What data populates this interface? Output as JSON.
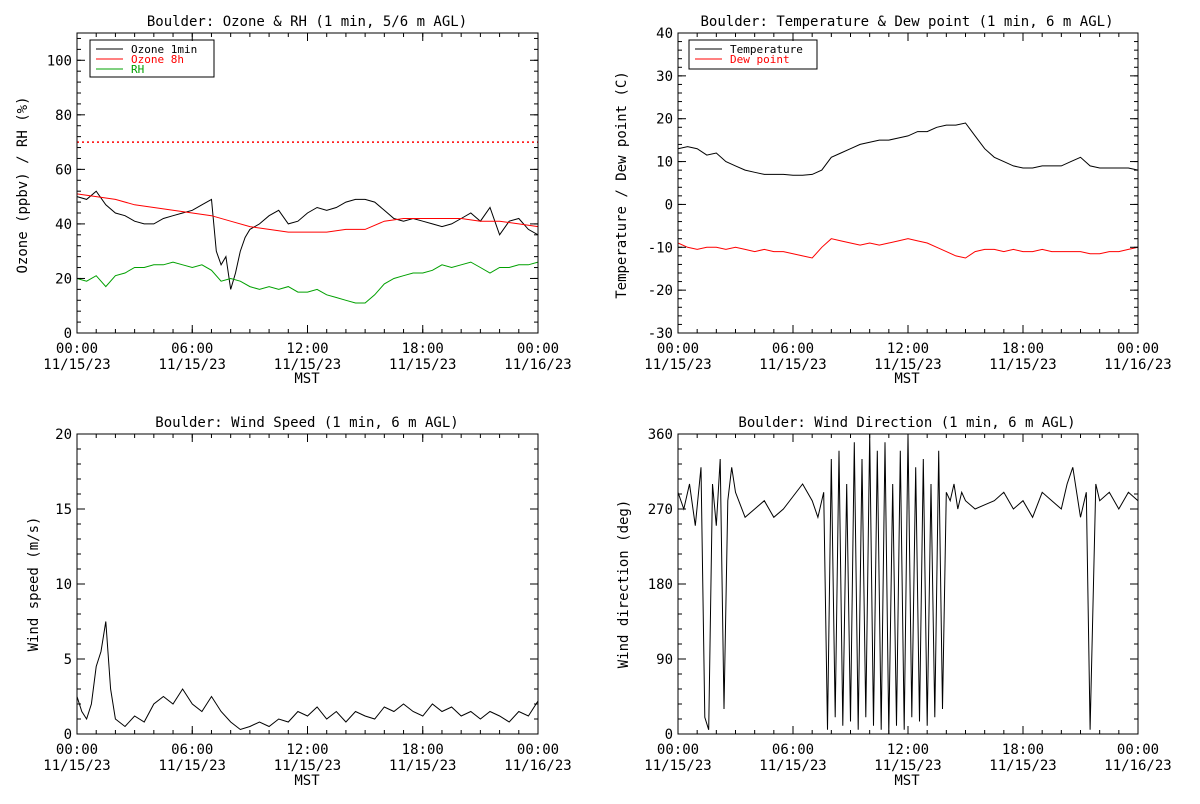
{
  "chart_data": [
    {
      "type": "line",
      "title": "Boulder: Ozone & RH (1 min, 5/6 m AGL)",
      "xlabel": "MST",
      "ylabel": "Ozone (ppbv) / RH (%)",
      "xticks": [
        {
          "hour": 0,
          "line1": "00:00",
          "line2": "11/15/23"
        },
        {
          "hour": 6,
          "line1": "06:00",
          "line2": "11/15/23"
        },
        {
          "hour": 12,
          "line1": "12:00",
          "line2": "11/15/23"
        },
        {
          "hour": 18,
          "line1": "18:00",
          "line2": "11/15/23"
        },
        {
          "hour": 24,
          "line1": "00:00",
          "line2": "11/16/23"
        }
      ],
      "ylim": [
        0,
        110
      ],
      "yticks": [
        0,
        20,
        40,
        60,
        80,
        100
      ],
      "reference_line": {
        "y": 70,
        "color": "#ff0000",
        "style": "dotted"
      },
      "legend_position": "top-left",
      "series": [
        {
          "name": "Ozone 1min",
          "color": "#000000",
          "x": [
            0,
            0.5,
            1,
            1.5,
            2,
            2.5,
            3,
            3.5,
            4,
            4.5,
            5,
            5.5,
            6,
            6.5,
            7,
            7.25,
            7.5,
            7.75,
            8,
            8.25,
            8.5,
            8.75,
            9,
            9.5,
            10,
            10.5,
            11,
            11.5,
            12,
            12.5,
            13,
            13.5,
            14,
            14.5,
            15,
            15.5,
            16,
            16.5,
            17,
            17.5,
            18,
            18.5,
            19,
            19.5,
            20,
            20.5,
            21,
            21.5,
            22,
            22.5,
            23,
            23.5,
            24
          ],
          "y": [
            50,
            49,
            52,
            47,
            44,
            43,
            41,
            40,
            40,
            42,
            43,
            44,
            45,
            47,
            49,
            30,
            25,
            28,
            16,
            22,
            30,
            35,
            38,
            40,
            43,
            45,
            40,
            41,
            44,
            46,
            45,
            46,
            48,
            49,
            49,
            48,
            45,
            42,
            41,
            42,
            41,
            40,
            39,
            40,
            42,
            44,
            41,
            46,
            36,
            41,
            42,
            38,
            36
          ]
        },
        {
          "name": "Ozone 8h",
          "color": "#ff0000",
          "x": [
            0,
            1,
            2,
            3,
            4,
            5,
            6,
            7,
            8,
            9,
            10,
            11,
            12,
            13,
            14,
            15,
            16,
            17,
            18,
            19,
            20,
            21,
            22,
            23,
            24
          ],
          "y": [
            51,
            50,
            49,
            47,
            46,
            45,
            44,
            43,
            41,
            39,
            38,
            37,
            37,
            37,
            38,
            38,
            41,
            42,
            42,
            42,
            42,
            41,
            41,
            40,
            39
          ]
        },
        {
          "name": "RH",
          "color": "#00a000",
          "x": [
            0,
            0.5,
            1,
            1.5,
            2,
            2.5,
            3,
            3.5,
            4,
            4.5,
            5,
            5.5,
            6,
            6.5,
            7,
            7.5,
            8,
            8.5,
            9,
            9.5,
            10,
            10.5,
            11,
            11.5,
            12,
            12.5,
            13,
            13.5,
            14,
            14.5,
            15,
            15.5,
            16,
            16.5,
            17,
            17.5,
            18,
            18.5,
            19,
            19.5,
            20,
            20.5,
            21,
            21.5,
            22,
            22.5,
            23,
            23.5,
            24
          ],
          "y": [
            20,
            19,
            21,
            17,
            21,
            22,
            24,
            24,
            25,
            25,
            26,
            25,
            24,
            25,
            23,
            19,
            20,
            19,
            17,
            16,
            17,
            16,
            17,
            15,
            15,
            16,
            14,
            13,
            12,
            11,
            11,
            14,
            18,
            20,
            21,
            22,
            22,
            23,
            25,
            24,
            25,
            26,
            24,
            22,
            24,
            24,
            25,
            25,
            26
          ]
        }
      ]
    },
    {
      "type": "line",
      "title": "Boulder: Temperature & Dew point (1 min, 6 m AGL)",
      "xlabel": "MST",
      "ylabel": "Temperature / Dew point (C)",
      "xticks": [
        {
          "hour": 0,
          "line1": "00:00",
          "line2": "11/15/23"
        },
        {
          "hour": 6,
          "line1": "06:00",
          "line2": "11/15/23"
        },
        {
          "hour": 12,
          "line1": "12:00",
          "line2": "11/15/23"
        },
        {
          "hour": 18,
          "line1": "18:00",
          "line2": "11/15/23"
        },
        {
          "hour": 24,
          "line1": "00:00",
          "line2": "11/16/23"
        }
      ],
      "ylim": [
        -30,
        40
      ],
      "yticks": [
        -30,
        -20,
        -10,
        0,
        10,
        20,
        30,
        40
      ],
      "legend_position": "top-left",
      "series": [
        {
          "name": "Temperature",
          "color": "#000000",
          "x": [
            0,
            0.5,
            1,
            1.5,
            2,
            2.5,
            3,
            3.5,
            4,
            4.5,
            5,
            5.5,
            6,
            6.5,
            7,
            7.5,
            8,
            8.5,
            9,
            9.5,
            10,
            10.5,
            11,
            11.5,
            12,
            12.5,
            13,
            13.5,
            14,
            14.5,
            15,
            15.5,
            16,
            16.5,
            17,
            17.5,
            18,
            18.5,
            19,
            19.5,
            20,
            20.5,
            21,
            21.5,
            22,
            22.5,
            23,
            23.5,
            24
          ],
          "y": [
            13,
            13.5,
            13,
            11.5,
            12,
            10,
            9,
            8,
            7.5,
            7,
            7,
            7,
            6.8,
            6.8,
            7,
            8,
            11,
            12,
            13,
            14,
            14.5,
            15,
            15,
            15.5,
            16,
            17,
            17,
            18,
            18.5,
            18.5,
            19,
            16,
            13,
            11,
            10,
            9,
            8.5,
            8.5,
            9,
            9,
            9,
            10,
            11,
            9,
            8.5,
            8.5,
            8.5,
            8.5,
            8
          ]
        },
        {
          "name": "Dew point",
          "color": "#ff0000",
          "x": [
            0,
            0.5,
            1,
            1.5,
            2,
            2.5,
            3,
            3.5,
            4,
            4.5,
            5,
            5.5,
            6,
            6.5,
            7,
            7.5,
            8,
            8.5,
            9,
            9.5,
            10,
            10.5,
            11,
            11.5,
            12,
            12.5,
            13,
            13.5,
            14,
            14.5,
            15,
            15.5,
            16,
            16.5,
            17,
            17.5,
            18,
            18.5,
            19,
            19.5,
            20,
            20.5,
            21,
            21.5,
            22,
            22.5,
            23,
            23.5,
            24
          ],
          "y": [
            -9,
            -10,
            -10.5,
            -10,
            -10,
            -10.5,
            -10,
            -10.5,
            -11,
            -10.5,
            -11,
            -11,
            -11.5,
            -12,
            -12.5,
            -10,
            -8,
            -8.5,
            -9,
            -9.5,
            -9,
            -9.5,
            -9,
            -8.5,
            -8,
            -8.5,
            -9,
            -10,
            -11,
            -12,
            -12.5,
            -11,
            -10.5,
            -10.5,
            -11,
            -10.5,
            -11,
            -11,
            -10.5,
            -11,
            -11,
            -11,
            -11,
            -11.5,
            -11.5,
            -11,
            -11,
            -10.5,
            -10
          ]
        }
      ]
    },
    {
      "type": "line",
      "title": "Boulder: Wind Speed (1 min, 6 m AGL)",
      "xlabel": "MST",
      "ylabel": "Wind speed (m/s)",
      "xticks": [
        {
          "hour": 0,
          "line1": "00:00",
          "line2": "11/15/23"
        },
        {
          "hour": 6,
          "line1": "06:00",
          "line2": "11/15/23"
        },
        {
          "hour": 12,
          "line1": "12:00",
          "line2": "11/15/23"
        },
        {
          "hour": 18,
          "line1": "18:00",
          "line2": "11/15/23"
        },
        {
          "hour": 24,
          "line1": "00:00",
          "line2": "11/16/23"
        }
      ],
      "ylim": [
        0,
        20
      ],
      "yticks": [
        0,
        5,
        10,
        15,
        20
      ],
      "series": [
        {
          "name": "",
          "color": "#000000",
          "x": [
            0,
            0.25,
            0.5,
            0.75,
            1,
            1.25,
            1.5,
            1.75,
            2,
            2.5,
            3,
            3.5,
            4,
            4.5,
            5,
            5.5,
            6,
            6.5,
            7,
            7.5,
            8,
            8.5,
            9,
            9.5,
            10,
            10.5,
            11,
            11.5,
            12,
            12.5,
            13,
            13.5,
            14,
            14.5,
            15,
            15.5,
            16,
            16.5,
            17,
            17.5,
            18,
            18.5,
            19,
            19.5,
            20,
            20.5,
            21,
            21.5,
            22,
            22.5,
            23,
            23.5,
            24
          ],
          "y": [
            2.5,
            1.5,
            1,
            2,
            4.5,
            5.5,
            7.5,
            3,
            1,
            0.5,
            1.2,
            0.8,
            2,
            2.5,
            2,
            3,
            2,
            1.5,
            2.5,
            1.5,
            0.8,
            0.3,
            0.5,
            0.8,
            0.5,
            1,
            0.8,
            1.5,
            1.2,
            1.8,
            1,
            1.5,
            0.8,
            1.5,
            1.2,
            1,
            1.8,
            1.5,
            2,
            1.5,
            1.2,
            2,
            1.5,
            1.8,
            1.2,
            1.5,
            1,
            1.5,
            1.2,
            0.8,
            1.5,
            1.2,
            2.2
          ]
        }
      ]
    },
    {
      "type": "line",
      "title": "Boulder: Wind Direction (1 min, 6 m AGL)",
      "xlabel": "MST",
      "ylabel": "Wind direction (deg)",
      "xticks": [
        {
          "hour": 0,
          "line1": "00:00",
          "line2": "11/15/23"
        },
        {
          "hour": 6,
          "line1": "06:00",
          "line2": "11/15/23"
        },
        {
          "hour": 12,
          "line1": "12:00",
          "line2": "11/15/23"
        },
        {
          "hour": 18,
          "line1": "18:00",
          "line2": "11/15/23"
        },
        {
          "hour": 24,
          "line1": "00:00",
          "line2": "11/16/23"
        }
      ],
      "ylim": [
        0,
        360
      ],
      "yticks": [
        0,
        90,
        180,
        270,
        360
      ],
      "series": [
        {
          "name": "",
          "color": "#000000",
          "x": [
            0,
            0.3,
            0.6,
            0.9,
            1.2,
            1.4,
            1.6,
            1.8,
            2,
            2.2,
            2.4,
            2.6,
            2.8,
            3,
            3.5,
            4,
            4.5,
            5,
            5.5,
            6,
            6.5,
            7,
            7.3,
            7.6,
            7.8,
            8,
            8.2,
            8.4,
            8.6,
            8.8,
            9,
            9.2,
            9.4,
            9.6,
            9.8,
            10,
            10.2,
            10.4,
            10.6,
            10.8,
            11,
            11.2,
            11.4,
            11.6,
            11.8,
            12,
            12.2,
            12.4,
            12.6,
            12.8,
            13,
            13.2,
            13.4,
            13.6,
            13.8,
            14,
            14.2,
            14.4,
            14.6,
            14.8,
            15,
            15.5,
            16,
            16.5,
            17,
            17.5,
            18,
            18.5,
            19,
            19.5,
            20,
            20.3,
            20.6,
            21,
            21.3,
            21.5,
            21.8,
            22,
            22.5,
            23,
            23.5,
            24
          ],
          "y": [
            290,
            270,
            300,
            250,
            320,
            20,
            5,
            300,
            250,
            330,
            30,
            280,
            320,
            290,
            260,
            270,
            280,
            260,
            270,
            285,
            300,
            280,
            260,
            290,
            5,
            330,
            20,
            340,
            10,
            300,
            15,
            350,
            5,
            330,
            20,
            360,
            10,
            340,
            5,
            350,
            0,
            300,
            10,
            340,
            5,
            360,
            20,
            320,
            15,
            330,
            10,
            300,
            20,
            340,
            30,
            290,
            280,
            300,
            270,
            290,
            280,
            270,
            275,
            280,
            290,
            270,
            280,
            260,
            290,
            280,
            270,
            300,
            320,
            260,
            290,
            5,
            300,
            280,
            290,
            270,
            290,
            280
          ]
        }
      ]
    }
  ]
}
